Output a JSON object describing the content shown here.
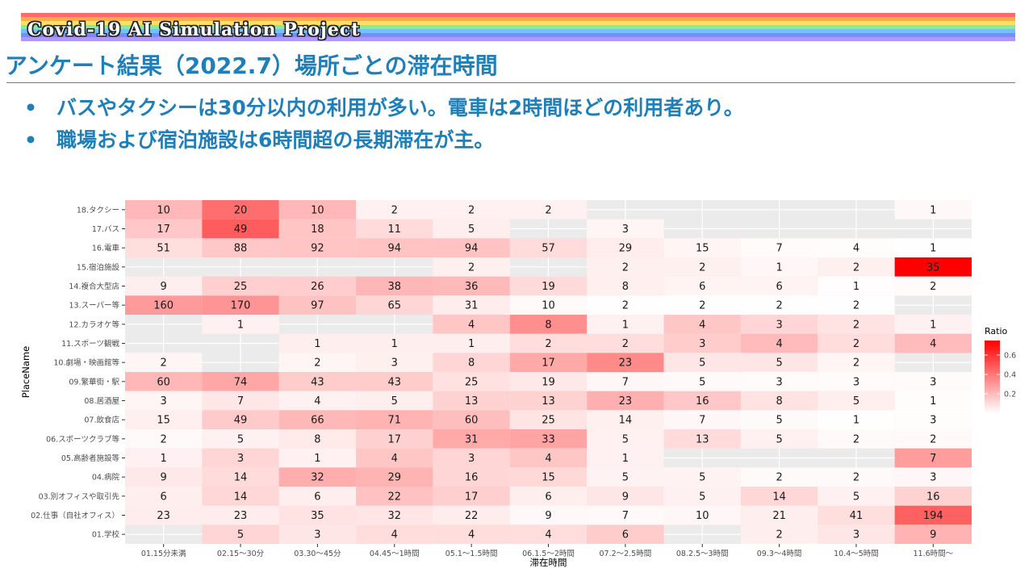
{
  "header": {
    "project_title": "Covid-19 AI Simulation Project",
    "rainbow_colors": [
      "#ff6b6b",
      "#ffa94d",
      "#ffe066",
      "#8ce99a",
      "#74c0fc",
      "#748ffc",
      "#b197fc"
    ]
  },
  "slide": {
    "title": "アンケート結果（2022.7）場所ごとの滞在時間",
    "bullets": [
      "バスやタクシーは30分以内の利用が多い。電車は2時間ほどの利用者あり。",
      "職場および宿泊施設は6時間超の長期滞在が主。"
    ],
    "bullet_color": "#1f7fb8"
  },
  "chart_data": {
    "type": "heatmap",
    "xlabel": "滞在時間",
    "ylabel": "PlaceName",
    "legend_title": "Ratio",
    "legend_ticks": [
      "0.6",
      "0.4",
      "0.2"
    ],
    "legend_tick_values": [
      0.6,
      0.4,
      0.2
    ],
    "legend_range": [
      0,
      0.75
    ],
    "legend_position": "right",
    "colors": {
      "low": "#ffffff",
      "high": "#ff0000",
      "panel": "#ebebeb"
    },
    "x_categories": [
      "01.15分未満",
      "02.15～30分",
      "03.30～45分",
      "04.45～1時間",
      "05.1～1.5時間",
      "06.1.5～2時間",
      "07.2～2.5時間",
      "08.2.5～3時間",
      "09.3～4時間",
      "10.4～5時間",
      "11.6時間～"
    ],
    "y_categories": [
      "18.タクシー",
      "17.バス",
      "16.電車",
      "15.宿泊施設",
      "14.複合大型店",
      "13.スーパー等",
      "12.カラオケ等",
      "11.スポーツ観戦",
      "10.劇場・映画館等",
      "09.繁華街・駅",
      "08.居酒屋",
      "07.飲食店",
      "06.スポーツクラブ等",
      "05.高齢者施設等",
      "04.病院",
      "03.別オフィスや取引先",
      "02.仕事（自社オフィス）",
      "01.学校"
    ],
    "values": [
      [
        10,
        20,
        10,
        2,
        2,
        2,
        null,
        null,
        null,
        null,
        1
      ],
      [
        17,
        49,
        18,
        11,
        5,
        null,
        3,
        null,
        null,
        null,
        null
      ],
      [
        51,
        88,
        92,
        94,
        94,
        57,
        29,
        15,
        7,
        4,
        1
      ],
      [
        null,
        null,
        null,
        null,
        2,
        null,
        2,
        2,
        1,
        2,
        35
      ],
      [
        9,
        25,
        26,
        38,
        36,
        19,
        8,
        6,
        6,
        1,
        2
      ],
      [
        160,
        170,
        97,
        65,
        31,
        10,
        2,
        2,
        2,
        2,
        null
      ],
      [
        null,
        1,
        null,
        null,
        4,
        8,
        1,
        4,
        3,
        2,
        1
      ],
      [
        null,
        null,
        1,
        1,
        1,
        2,
        2,
        3,
        4,
        2,
        4
      ],
      [
        2,
        null,
        2,
        3,
        8,
        17,
        23,
        5,
        5,
        2,
        null
      ],
      [
        60,
        74,
        43,
        43,
        25,
        19,
        7,
        5,
        3,
        3,
        3
      ],
      [
        3,
        7,
        4,
        5,
        13,
        13,
        23,
        16,
        8,
        5,
        1
      ],
      [
        15,
        49,
        66,
        71,
        60,
        25,
        14,
        7,
        5,
        1,
        3
      ],
      [
        2,
        5,
        8,
        17,
        31,
        33,
        5,
        13,
        5,
        2,
        2
      ],
      [
        1,
        3,
        1,
        4,
        3,
        4,
        1,
        null,
        null,
        null,
        7
      ],
      [
        9,
        14,
        32,
        29,
        16,
        15,
        5,
        5,
        2,
        2,
        3
      ],
      [
        6,
        14,
        6,
        22,
        17,
        6,
        9,
        5,
        14,
        5,
        16
      ],
      [
        23,
        23,
        35,
        32,
        22,
        9,
        7,
        10,
        21,
        41,
        194
      ],
      [
        null,
        5,
        3,
        4,
        4,
        4,
        6,
        null,
        2,
        3,
        9
      ]
    ]
  }
}
